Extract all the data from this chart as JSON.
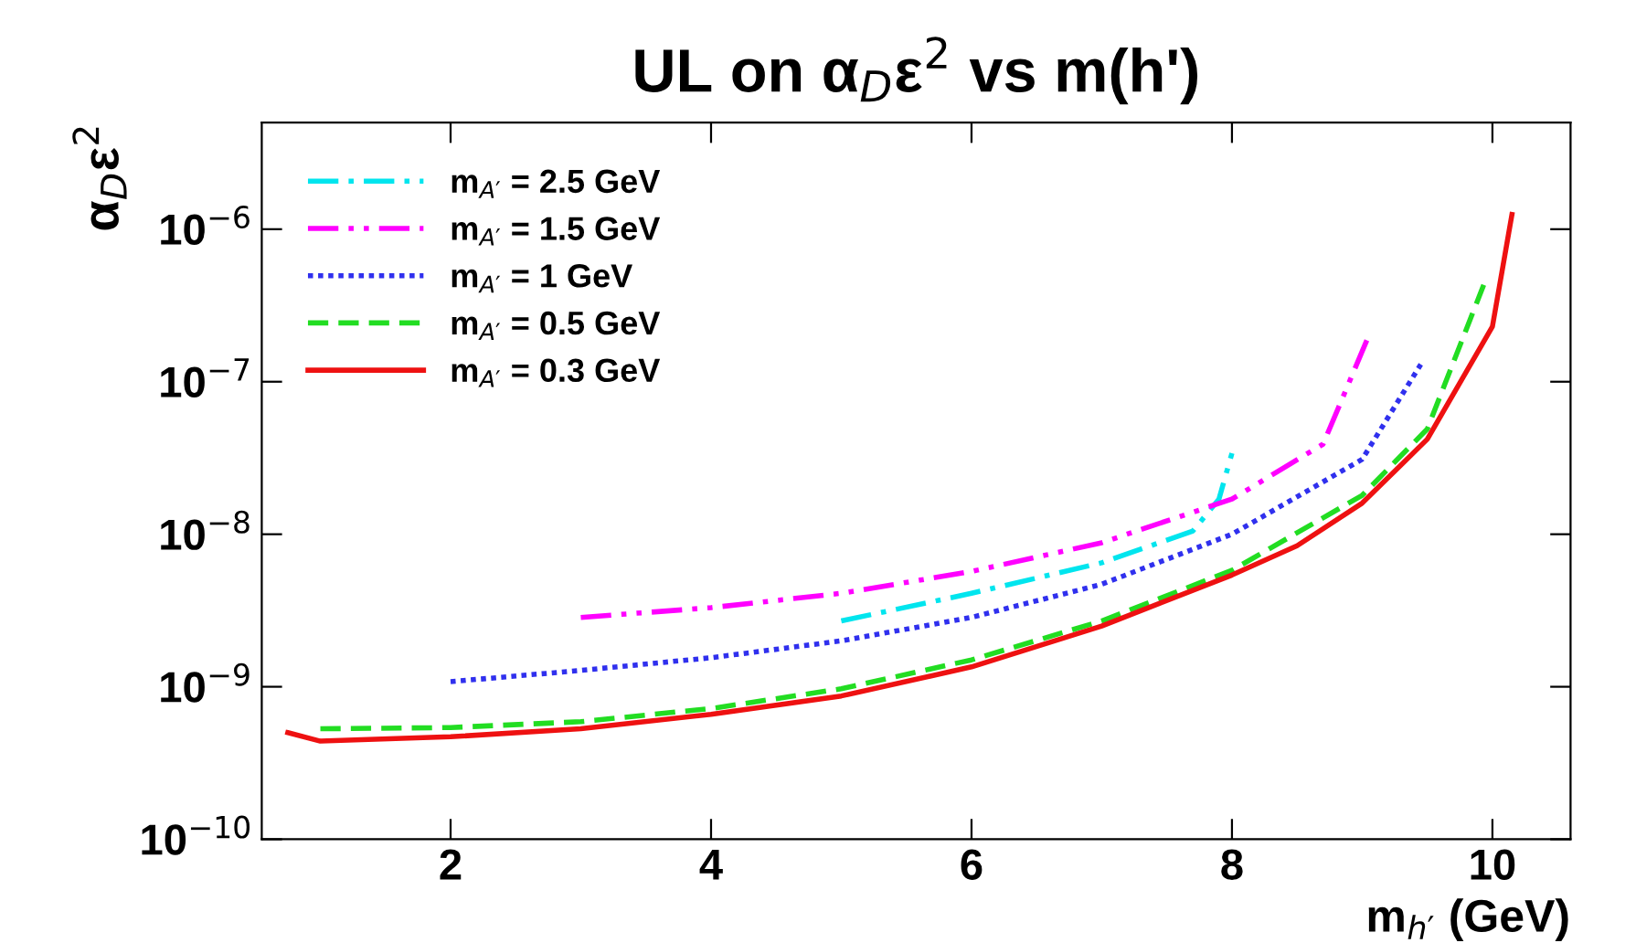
{
  "chart_data": {
    "type": "line",
    "title": "UL on α$_{D}$ε$^{2}$ vs m(h')",
    "xlabel": "m$_{h′}$ (GeV)",
    "ylabel": "α$_{D}$ε$^{2}$",
    "log": "y",
    "grid": false,
    "legend": "top left",
    "marker": "none",
    "xlim": [
      0.55,
      10.6
    ],
    "xticks": [
      2,
      4,
      6,
      8,
      10
    ],
    "ylim": [
      1e-10,
      5e-06
    ],
    "yticks": [
      {
        "value": 1e-10,
        "label": "10$^{−10}$"
      },
      {
        "value": 1e-09,
        "label": "10$^{−9}$"
      },
      {
        "value": 1e-08,
        "label": "10$^{−8}$"
      },
      {
        "value": 1e-07,
        "label": "10$^{−7}$"
      },
      {
        "value": 1e-06,
        "label": "10$^{−6}$"
      }
    ],
    "series": [
      {
        "name": "m$_{A′}$ = 2.5 GeV",
        "color": "#00e5ee",
        "line_style": "dashdot",
        "x": [
          5,
          6,
          7,
          7.7,
          7.9,
          8.0
        ],
        "values": [
          2.7e-09,
          4.1e-09,
          6.5e-09,
          1.05e-08,
          1.7e-08,
          3.4e-08
        ]
      },
      {
        "name": "m$_{A′}$ = 1.5 GeV",
        "color": "#ff00ff",
        "line_style": "dashdotdot",
        "x": [
          3,
          4,
          5,
          6,
          7,
          8,
          8.7,
          9.05
        ],
        "values": [
          2.85e-09,
          3.3e-09,
          4.1e-09,
          5.7e-09,
          8.8e-09,
          1.7e-08,
          3.9e-08,
          2e-07
        ]
      },
      {
        "name": "m$_{A′}$ = 1 GeV",
        "color": "#3030ee",
        "line_style": "dotted",
        "x": [
          2,
          3,
          4,
          5,
          6,
          7,
          8,
          9,
          9.45
        ],
        "values": [
          1.08e-09,
          1.28e-09,
          1.55e-09,
          2e-09,
          2.85e-09,
          4.7e-09,
          1e-08,
          3.1e-08,
          1.3e-07
        ]
      },
      {
        "name": "m$_{A′}$ = 0.5 GeV",
        "color": "#22dd22",
        "line_style": "dashed",
        "x": [
          1,
          2,
          3,
          4,
          5,
          6,
          7,
          8,
          9,
          9.5,
          9.95
        ],
        "values": [
          5.3e-10,
          5.4e-10,
          5.9e-10,
          7.2e-10,
          9.7e-10,
          1.5e-09,
          2.7e-09,
          5.8e-09,
          1.8e-08,
          4.9e-08,
          4.7e-07
        ]
      },
      {
        "name": "m$_{A′}$ = 0.3 GeV",
        "color": "#ee1111",
        "line_style": "solid",
        "x": [
          0.75,
          1.0,
          2,
          3,
          4,
          5,
          6,
          7,
          8,
          8.5,
          9,
          9.5,
          10,
          10.15
        ],
        "values": [
          5e-10,
          4.4e-10,
          4.7e-10,
          5.3e-10,
          6.6e-10,
          8.7e-10,
          1.35e-09,
          2.5e-09,
          5.4e-09,
          8.4e-09,
          1.6e-08,
          4.2e-08,
          2.3e-07,
          1.25e-06
        ]
      }
    ]
  }
}
